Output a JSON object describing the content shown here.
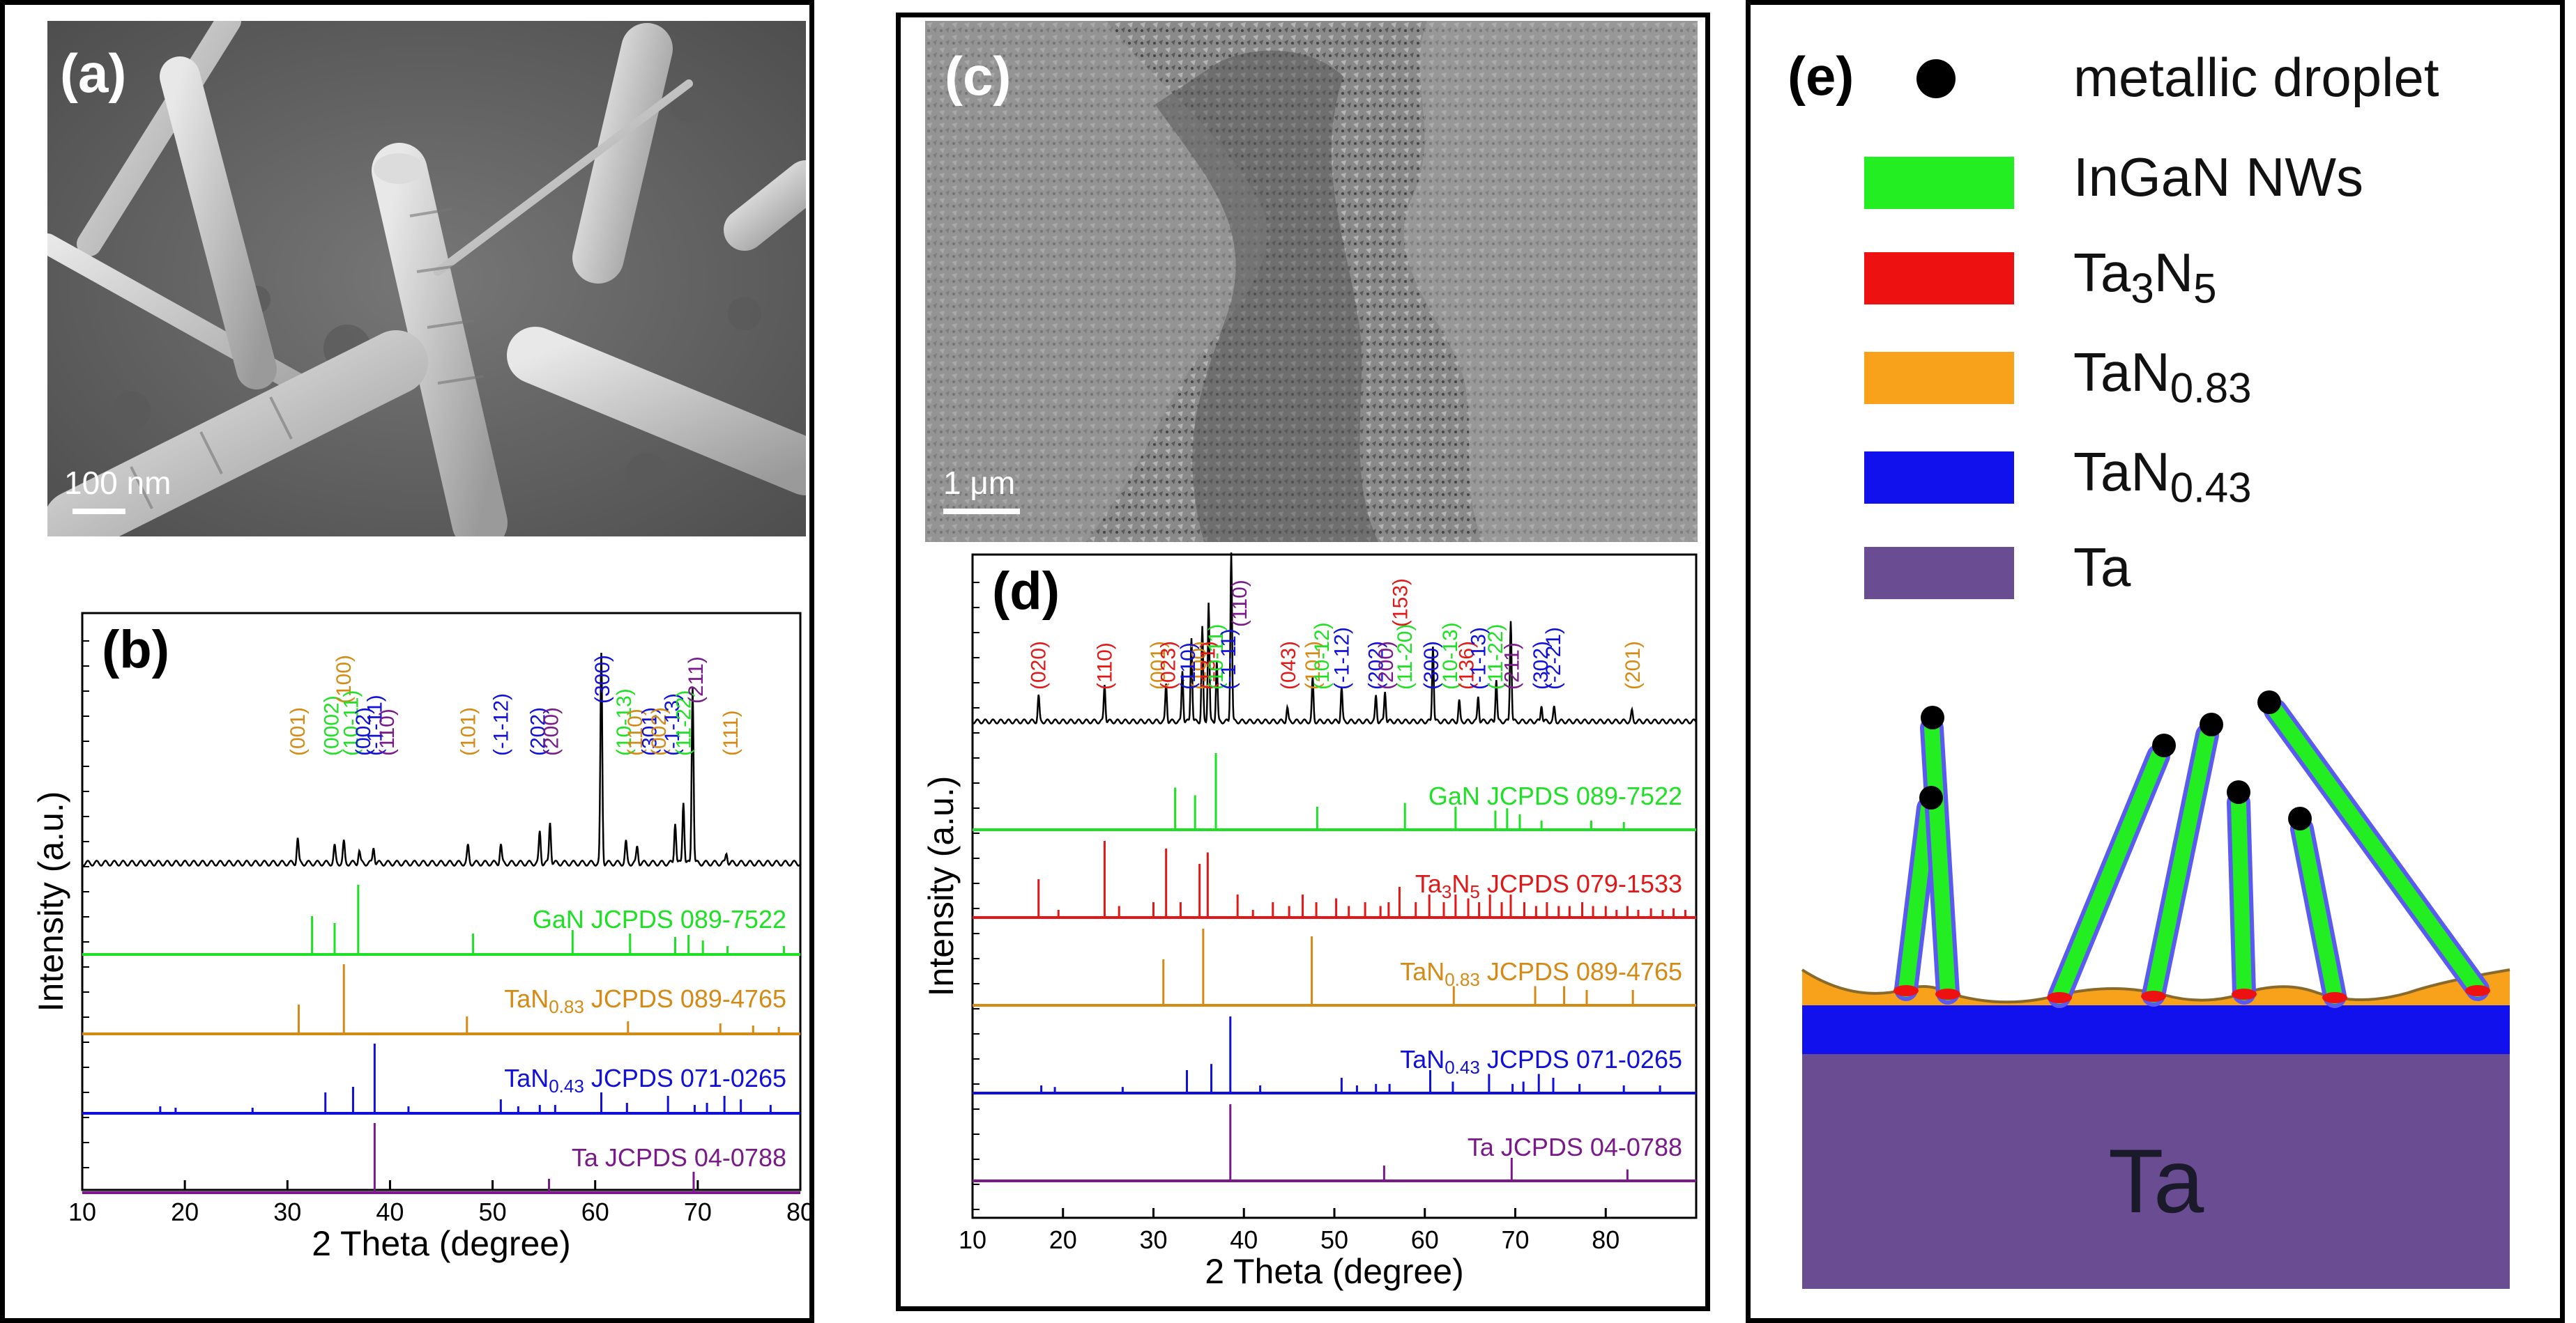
{
  "panels": {
    "a": {
      "label": "(a)",
      "scale_text": "100 nm"
    },
    "b": {
      "label": "(b)",
      "ylabel": "Intensity (a.u.)",
      "xlabel": "2 Theta (degree)",
      "xlim": [
        10,
        80
      ],
      "xticks": [
        "10",
        "20",
        "30",
        "40",
        "50",
        "60",
        "70",
        "80"
      ],
      "references": [
        {
          "text": "GaN JCPDS 089-7522",
          "color": "#1ee024",
          "lines": [
            [
              32.4,
              0.55
            ],
            [
              34.6,
              0.45
            ],
            [
              36.9,
              1.0
            ],
            [
              48.1,
              0.3
            ],
            [
              57.8,
              0.35
            ],
            [
              63.4,
              0.3
            ],
            [
              67.8,
              0.25
            ],
            [
              69.1,
              0.28
            ],
            [
              70.5,
              0.2
            ],
            [
              72.9,
              0.12
            ],
            [
              78.4,
              0.12
            ]
          ]
        },
        {
          "text": "TaN0.83 JCPDS 089-4765",
          "color": "#d48a14",
          "lines": [
            [
              31.1,
              0.42
            ],
            [
              35.5,
              1.0
            ],
            [
              47.5,
              0.25
            ],
            [
              63.2,
              0.18
            ],
            [
              72.2,
              0.15
            ],
            [
              75.4,
              0.12
            ],
            [
              77.9,
              0.1
            ]
          ]
        },
        {
          "text": "TaN0.43 JCPDS 071-0265",
          "color": "#1010d8",
          "lines": [
            [
              17.6,
              0.1
            ],
            [
              19.1,
              0.08
            ],
            [
              26.6,
              0.08
            ],
            [
              33.7,
              0.3
            ],
            [
              36.4,
              0.38
            ],
            [
              38.5,
              1.0
            ],
            [
              41.8,
              0.1
            ],
            [
              50.8,
              0.2
            ],
            [
              52.5,
              0.1
            ],
            [
              54.6,
              0.12
            ],
            [
              56.1,
              0.12
            ],
            [
              60.6,
              0.3
            ],
            [
              63.1,
              0.15
            ],
            [
              67.1,
              0.25
            ],
            [
              69.7,
              0.12
            ],
            [
              70.9,
              0.15
            ],
            [
              72.6,
              0.25
            ],
            [
              74.2,
              0.2
            ],
            [
              77.1,
              0.12
            ]
          ]
        },
        {
          "text": "Ta JCPDS 04-0788",
          "color": "#7a1a8a",
          "lines": [
            [
              38.5,
              1.0
            ],
            [
              55.5,
              0.2
            ],
            [
              69.6,
              0.3
            ]
          ]
        }
      ],
      "peaks": [
        {
          "text": "(001)",
          "color": "#d48a14",
          "x": 31.0
        },
        {
          "text": "(0002)",
          "color": "#1ee024",
          "x": 34.3
        },
        {
          "text": "(100)",
          "color": "#d48a14",
          "x": 35.5,
          "high": true
        },
        {
          "text": "(10-11)",
          "color": "#1ee024",
          "x": 36.2
        },
        {
          "text": "(002)",
          "color": "#1010d8",
          "x": 37.4
        },
        {
          "text": "(-1-11)",
          "color": "#1010d8",
          "x": 38.5
        },
        {
          "text": "(110)",
          "color": "#7a1a8a",
          "x": 39.7
        },
        {
          "text": "(101)",
          "color": "#d48a14",
          "x": 47.6
        },
        {
          "text": "(-1-12)",
          "color": "#1010d8",
          "x": 50.8
        },
        {
          "text": "(202)",
          "color": "#1010d8",
          "x": 54.4
        },
        {
          "text": "(200)",
          "color": "#7a1a8a",
          "x": 55.7
        },
        {
          "text": "(300)",
          "color": "#1010d8",
          "x": 60.7,
          "high": true
        },
        {
          "text": "(10-13)",
          "color": "#1ee024",
          "x": 62.8
        },
        {
          "text": "(110)",
          "color": "#d48a14",
          "x": 63.9
        },
        {
          "text": "(301)",
          "color": "#1010d8",
          "x": 65.3
        },
        {
          "text": "(002)",
          "color": "#d48a14",
          "x": 66.2
        },
        {
          "text": "(-1-13)",
          "color": "#1010d8",
          "x": 67.5
        },
        {
          "text": "(11-22)",
          "color": "#1ee024",
          "x": 68.6
        },
        {
          "text": "(211)",
          "color": "#7a1a8a",
          "x": 69.8,
          "high": true
        },
        {
          "text": "(111)",
          "color": "#d48a14",
          "x": 73.2
        }
      ],
      "pattern": [
        [
          31.0,
          0.12
        ],
        [
          34.6,
          0.08
        ],
        [
          35.5,
          0.1
        ],
        [
          37.0,
          0.06
        ],
        [
          38.4,
          0.08
        ],
        [
          47.6,
          0.08
        ],
        [
          50.8,
          0.09
        ],
        [
          54.6,
          0.15
        ],
        [
          55.6,
          0.2
        ],
        [
          60.6,
          1.0
        ],
        [
          63.0,
          0.1
        ],
        [
          64.1,
          0.08
        ],
        [
          67.8,
          0.2
        ],
        [
          68.6,
          0.3
        ],
        [
          69.5,
          0.85
        ],
        [
          72.8,
          0.05
        ]
      ]
    },
    "c": {
      "label": "(c)",
      "scale_text": "1 μm"
    },
    "d": {
      "label": "(d)",
      "ylabel": "Intensity (a.u.)",
      "xlabel": "2 Theta (degree)",
      "xlim": [
        10,
        90
      ],
      "xticks": [
        "10",
        "20",
        "30",
        "40",
        "50",
        "60",
        "70",
        "80"
      ],
      "references": [
        {
          "text": "GaN JCPDS 089-7522",
          "color": "#1ee024",
          "lines": [
            [
              32.4,
              0.55
            ],
            [
              34.6,
              0.45
            ],
            [
              36.9,
              1.0
            ],
            [
              48.1,
              0.3
            ],
            [
              57.8,
              0.35
            ],
            [
              63.4,
              0.3
            ],
            [
              67.8,
              0.25
            ],
            [
              69.1,
              0.28
            ],
            [
              70.5,
              0.2
            ],
            [
              72.9,
              0.12
            ],
            [
              78.4,
              0.12
            ],
            [
              82.0,
              0.1
            ]
          ]
        },
        {
          "text": "Ta3N5 JCPDS 079-1533",
          "color": "#e01818",
          "lines": [
            [
              17.3,
              0.5
            ],
            [
              19.5,
              0.1
            ],
            [
              24.6,
              1.0
            ],
            [
              26.2,
              0.15
            ],
            [
              30.0,
              0.2
            ],
            [
              31.4,
              0.9
            ],
            [
              33.0,
              0.2
            ],
            [
              35.1,
              0.7
            ],
            [
              36.0,
              0.85
            ],
            [
              39.3,
              0.3
            ],
            [
              41.0,
              0.1
            ],
            [
              43.2,
              0.2
            ],
            [
              45.0,
              0.15
            ],
            [
              46.5,
              0.3
            ],
            [
              48.0,
              0.2
            ],
            [
              50.2,
              0.25
            ],
            [
              51.6,
              0.15
            ],
            [
              53.4,
              0.2
            ],
            [
              55.1,
              0.15
            ],
            [
              56.0,
              0.2
            ],
            [
              57.2,
              0.4
            ],
            [
              59.0,
              0.2
            ],
            [
              60.5,
              0.3
            ],
            [
              62.1,
              0.2
            ],
            [
              63.4,
              0.3
            ],
            [
              64.8,
              0.25
            ],
            [
              66.0,
              0.2
            ],
            [
              67.2,
              0.3
            ],
            [
              68.5,
              0.2
            ],
            [
              69.5,
              0.3
            ],
            [
              71.0,
              0.2
            ],
            [
              72.3,
              0.15
            ],
            [
              73.5,
              0.2
            ],
            [
              74.8,
              0.15
            ],
            [
              76.0,
              0.15
            ],
            [
              77.4,
              0.2
            ],
            [
              78.6,
              0.15
            ],
            [
              80.0,
              0.15
            ],
            [
              81.2,
              0.1
            ],
            [
              82.4,
              0.15
            ],
            [
              83.6,
              0.1
            ],
            [
              85.0,
              0.12
            ],
            [
              86.3,
              0.1
            ],
            [
              87.5,
              0.12
            ],
            [
              88.8,
              0.1
            ]
          ]
        },
        {
          "text": "TaN0.83 JCPDS 089-4765",
          "color": "#d48a14",
          "lines": [
            [
              31.1,
              0.6
            ],
            [
              35.5,
              1.0
            ],
            [
              47.5,
              0.9
            ],
            [
              63.2,
              0.25
            ],
            [
              72.2,
              0.25
            ],
            [
              75.4,
              0.25
            ],
            [
              77.9,
              0.2
            ],
            [
              83.0,
              0.2
            ]
          ]
        },
        {
          "text": "TaN0.43 JCPDS 071-0265",
          "color": "#1010d8",
          "lines": [
            [
              17.6,
              0.1
            ],
            [
              19.1,
              0.08
            ],
            [
              26.6,
              0.08
            ],
            [
              33.7,
              0.3
            ],
            [
              36.4,
              0.38
            ],
            [
              38.5,
              1.0
            ],
            [
              41.8,
              0.1
            ],
            [
              50.8,
              0.2
            ],
            [
              52.5,
              0.1
            ],
            [
              54.6,
              0.12
            ],
            [
              56.1,
              0.12
            ],
            [
              60.6,
              0.3
            ],
            [
              63.1,
              0.15
            ],
            [
              67.1,
              0.25
            ],
            [
              69.7,
              0.12
            ],
            [
              70.9,
              0.15
            ],
            [
              72.6,
              0.25
            ],
            [
              74.2,
              0.2
            ],
            [
              77.1,
              0.12
            ],
            [
              82.0,
              0.1
            ],
            [
              86.0,
              0.1
            ]
          ]
        },
        {
          "text": "Ta JCPDS 04-0788",
          "color": "#7a1a8a",
          "lines": [
            [
              38.5,
              1.0
            ],
            [
              55.5,
              0.2
            ],
            [
              69.6,
              0.3
            ],
            [
              82.4,
              0.15
            ]
          ]
        }
      ],
      "peaks": [
        {
          "text": "(020)",
          "color": "#e01818",
          "x": 17.3
        },
        {
          "text": "(110)",
          "color": "#e01818",
          "x": 24.6
        },
        {
          "text": "(001)",
          "color": "#d48a14",
          "x": 30.5
        },
        {
          "text": "(023)",
          "color": "#e01818",
          "x": 31.6
        },
        {
          "text": "(100)",
          "color": "#d48a14",
          "x": 35.0
        },
        {
          "text": "(110)",
          "color": "#1010d8",
          "x": 33.8
        },
        {
          "text": "(131)",
          "color": "#e01818",
          "x": 36.0
        },
        {
          "text": "(10-11)",
          "color": "#1ee024",
          "x": 36.9
        },
        {
          "text": "(-1-11)",
          "color": "#1010d8",
          "x": 38.3
        },
        {
          "text": "(110)",
          "color": "#7a1a8a",
          "x": 39.5,
          "high": true
        },
        {
          "text": "(043)",
          "color": "#e01818",
          "x": 44.9
        },
        {
          "text": "(101)",
          "color": "#d48a14",
          "x": 47.6
        },
        {
          "text": "(10-12)",
          "color": "#1ee024",
          "x": 48.6
        },
        {
          "text": "(-1-12)",
          "color": "#1010d8",
          "x": 50.8
        },
        {
          "text": "(153)",
          "color": "#e01818",
          "x": 57.3,
          "high": true
        },
        {
          "text": "(11-20)",
          "color": "#1ee024",
          "x": 57.8
        },
        {
          "text": "(202)",
          "color": "#1010d8",
          "x": 54.6
        },
        {
          "text": "(200)",
          "color": "#7a1a8a",
          "x": 55.7
        },
        {
          "text": "(300)",
          "color": "#1010d8",
          "x": 60.7
        },
        {
          "text": "(10-13)",
          "color": "#1ee024",
          "x": 62.8
        },
        {
          "text": "(136)",
          "color": "#e01818",
          "x": 64.6
        },
        {
          "text": "(-1-13)",
          "color": "#1010d8",
          "x": 65.9
        },
        {
          "text": "(11-22)",
          "color": "#1ee024",
          "x": 67.8
        },
        {
          "text": "(211)",
          "color": "#7a1a8a",
          "x": 69.6
        },
        {
          "text": "(302)",
          "color": "#1010d8",
          "x": 72.8
        },
        {
          "text": "(-2-21)",
          "color": "#1010d8",
          "x": 74.2
        },
        {
          "text": "(201)",
          "color": "#d48a14",
          "x": 83.0
        }
      ],
      "pattern": [
        [
          17.3,
          0.15
        ],
        [
          24.6,
          0.22
        ],
        [
          31.4,
          0.22
        ],
        [
          33.2,
          0.3
        ],
        [
          34.2,
          0.5
        ],
        [
          35.4,
          0.55
        ],
        [
          36.1,
          0.7
        ],
        [
          37.0,
          0.35
        ],
        [
          38.6,
          1.0
        ],
        [
          44.8,
          0.08
        ],
        [
          47.6,
          0.25
        ],
        [
          50.8,
          0.2
        ],
        [
          54.6,
          0.15
        ],
        [
          55.6,
          0.18
        ],
        [
          60.9,
          0.45
        ],
        [
          63.8,
          0.12
        ],
        [
          65.9,
          0.15
        ],
        [
          67.9,
          0.25
        ],
        [
          69.5,
          0.6
        ],
        [
          72.9,
          0.1
        ],
        [
          74.3,
          0.08
        ],
        [
          82.9,
          0.06
        ]
      ]
    },
    "e": {
      "label": "(e)",
      "legend": [
        {
          "text": "metallic droplet",
          "color": "#000000",
          "shape": "circle"
        },
        {
          "text": "InGaN NWs",
          "color": "#22ee22",
          "shape": "rect"
        },
        {
          "text": "Ta",
          "sub": "3",
          "text2": "N",
          "sub2": "5",
          "color": "#ee1111",
          "shape": "rect"
        },
        {
          "text": "TaN",
          "sub": "0.83",
          "color": "#f7a21a",
          "shape": "rect"
        },
        {
          "text": "TaN",
          "sub": "0.43",
          "color": "#1111ee",
          "shape": "rect"
        },
        {
          "text": "Ta",
          "color": "#6a4c93",
          "shape": "rect"
        }
      ],
      "substrate_label": "Ta"
    }
  }
}
